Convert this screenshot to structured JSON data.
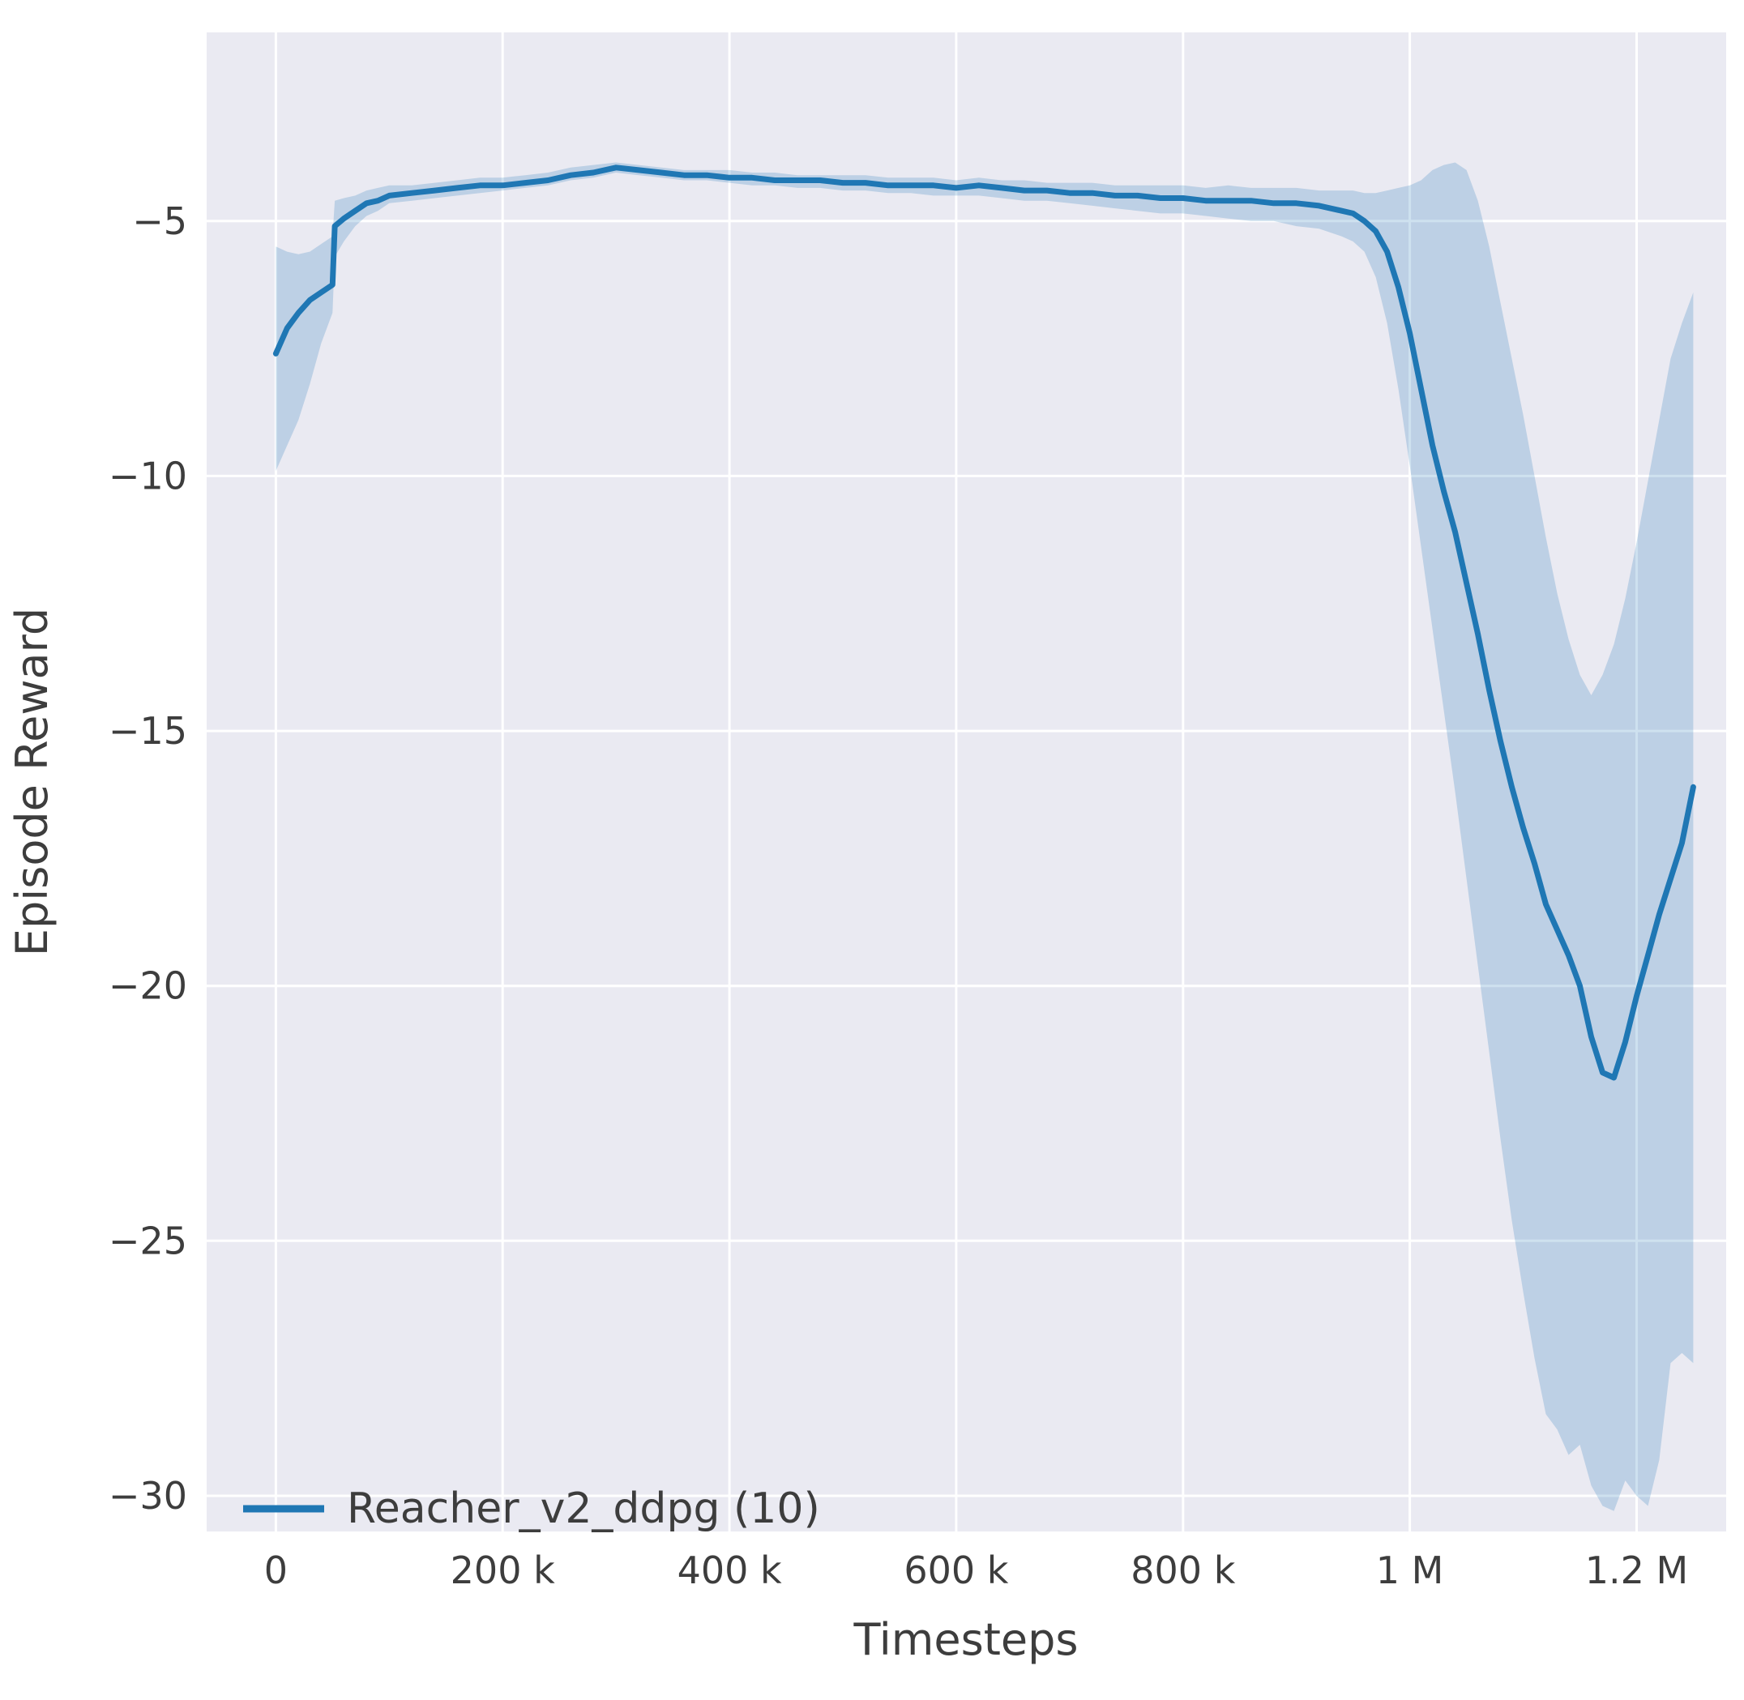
{
  "figure": {
    "background": "#ffffff",
    "plot_background": "#eaeaf2",
    "grid_color": "#ffffff",
    "line_color": "#1f77b4",
    "band_opacity": 0.22,
    "text_color": "#3d3d3d"
  },
  "chart_data": {
    "type": "line",
    "title": "",
    "xlabel": "Timesteps",
    "ylabel": "Episode Reward",
    "grid": true,
    "xlim": [
      -61000,
      1279000
    ],
    "ylim": [
      -30.7,
      -1.3
    ],
    "x_ticks": [
      0,
      200000,
      400000,
      600000,
      800000,
      1000000,
      1200000
    ],
    "x_tick_labels": [
      "0",
      "200 k",
      "400 k",
      "600 k",
      "800 k",
      "1 M",
      "1.2 M"
    ],
    "y_ticks": [
      -5,
      -10,
      -15,
      -20,
      -25,
      -30
    ],
    "y_tick_labels": [
      "−5",
      "−10",
      "−15",
      "−20",
      "−25",
      "−30"
    ],
    "legend": {
      "position": "lower left",
      "entries": [
        {
          "label": "Reacher_v2_ddpg (10)",
          "color": "#1f77b4"
        }
      ]
    },
    "series": [
      {
        "name": "Reacher_v2_ddpg (10)",
        "x": [
          0,
          10000,
          20000,
          30000,
          40000,
          50000,
          52000,
          60000,
          70000,
          80000,
          90000,
          100000,
          120000,
          140000,
          160000,
          180000,
          200000,
          220000,
          240000,
          260000,
          280000,
          300000,
          320000,
          340000,
          360000,
          380000,
          400000,
          420000,
          440000,
          460000,
          480000,
          500000,
          520000,
          540000,
          560000,
          580000,
          600000,
          620000,
          640000,
          660000,
          680000,
          700000,
          720000,
          740000,
          760000,
          780000,
          800000,
          820000,
          840000,
          860000,
          880000,
          900000,
          920000,
          940000,
          950000,
          960000,
          970000,
          980000,
          990000,
          1000000,
          1010000,
          1020000,
          1030000,
          1040000,
          1050000,
          1060000,
          1070000,
          1080000,
          1090000,
          1100000,
          1110000,
          1120000,
          1130000,
          1140000,
          1150000,
          1160000,
          1170000,
          1180000,
          1190000,
          1200000,
          1210000,
          1220000,
          1230000,
          1240000,
          1250000
        ],
        "mean": [
          -7.6,
          -7.1,
          -6.8,
          -6.55,
          -6.4,
          -6.25,
          -5.1,
          -4.95,
          -4.8,
          -4.65,
          -4.6,
          -4.5,
          -4.45,
          -4.4,
          -4.35,
          -4.3,
          -4.3,
          -4.25,
          -4.2,
          -4.1,
          -4.05,
          -3.95,
          -4.0,
          -4.05,
          -4.1,
          -4.1,
          -4.15,
          -4.15,
          -4.2,
          -4.2,
          -4.2,
          -4.25,
          -4.25,
          -4.3,
          -4.3,
          -4.3,
          -4.35,
          -4.3,
          -4.35,
          -4.4,
          -4.4,
          -4.45,
          -4.45,
          -4.5,
          -4.5,
          -4.55,
          -4.55,
          -4.6,
          -4.6,
          -4.6,
          -4.65,
          -4.65,
          -4.7,
          -4.8,
          -4.85,
          -5.0,
          -5.2,
          -5.6,
          -6.3,
          -7.2,
          -8.3,
          -9.4,
          -10.3,
          -11.1,
          -12.1,
          -13.1,
          -14.2,
          -15.2,
          -16.1,
          -16.9,
          -17.6,
          -18.4,
          -18.9,
          -19.4,
          -20.0,
          -21.0,
          -21.7,
          -21.8,
          -21.1,
          -20.2,
          -19.4,
          -18.6,
          -17.9,
          -17.2,
          -16.1
        ],
        "lower": [
          -9.9,
          -9.4,
          -8.9,
          -8.2,
          -7.4,
          -6.8,
          -5.7,
          -5.4,
          -5.1,
          -4.9,
          -4.8,
          -4.65,
          -4.6,
          -4.55,
          -4.5,
          -4.45,
          -4.4,
          -4.35,
          -4.3,
          -4.2,
          -4.15,
          -4.05,
          -4.1,
          -4.15,
          -4.2,
          -4.2,
          -4.25,
          -4.3,
          -4.3,
          -4.35,
          -4.35,
          -4.4,
          -4.4,
          -4.45,
          -4.45,
          -4.5,
          -4.5,
          -4.5,
          -4.55,
          -4.6,
          -4.6,
          -4.65,
          -4.7,
          -4.75,
          -4.8,
          -4.85,
          -4.85,
          -4.9,
          -4.95,
          -5.0,
          -5.0,
          -5.1,
          -5.15,
          -5.3,
          -5.4,
          -5.6,
          -6.1,
          -7.0,
          -8.3,
          -9.8,
          -11.4,
          -13.0,
          -14.6,
          -16.2,
          -17.9,
          -19.6,
          -21.3,
          -23.0,
          -24.6,
          -26.0,
          -27.3,
          -28.4,
          -28.7,
          -29.2,
          -29.0,
          -29.8,
          -30.2,
          -30.3,
          -29.7,
          -30.0,
          -30.2,
          -29.3,
          -27.4,
          -27.2,
          -27.4
        ],
        "upper": [
          -5.5,
          -5.6,
          -5.65,
          -5.6,
          -5.45,
          -5.3,
          -4.6,
          -4.55,
          -4.5,
          -4.4,
          -4.35,
          -4.3,
          -4.3,
          -4.25,
          -4.2,
          -4.15,
          -4.15,
          -4.1,
          -4.05,
          -3.95,
          -3.9,
          -3.85,
          -3.9,
          -3.95,
          -4.0,
          -4.0,
          -4.0,
          -4.05,
          -4.05,
          -4.1,
          -4.1,
          -4.1,
          -4.1,
          -4.15,
          -4.15,
          -4.15,
          -4.2,
          -4.15,
          -4.2,
          -4.2,
          -4.25,
          -4.25,
          -4.25,
          -4.3,
          -4.3,
          -4.3,
          -4.3,
          -4.35,
          -4.3,
          -4.35,
          -4.35,
          -4.35,
          -4.4,
          -4.4,
          -4.4,
          -4.45,
          -4.45,
          -4.4,
          -4.35,
          -4.3,
          -4.2,
          -4.0,
          -3.9,
          -3.85,
          -4.0,
          -4.6,
          -5.5,
          -6.6,
          -7.7,
          -8.8,
          -10.0,
          -11.2,
          -12.3,
          -13.2,
          -13.9,
          -14.3,
          -13.9,
          -13.3,
          -12.4,
          -11.3,
          -10.1,
          -8.9,
          -7.7,
          -7.0,
          -6.4
        ]
      }
    ]
  }
}
